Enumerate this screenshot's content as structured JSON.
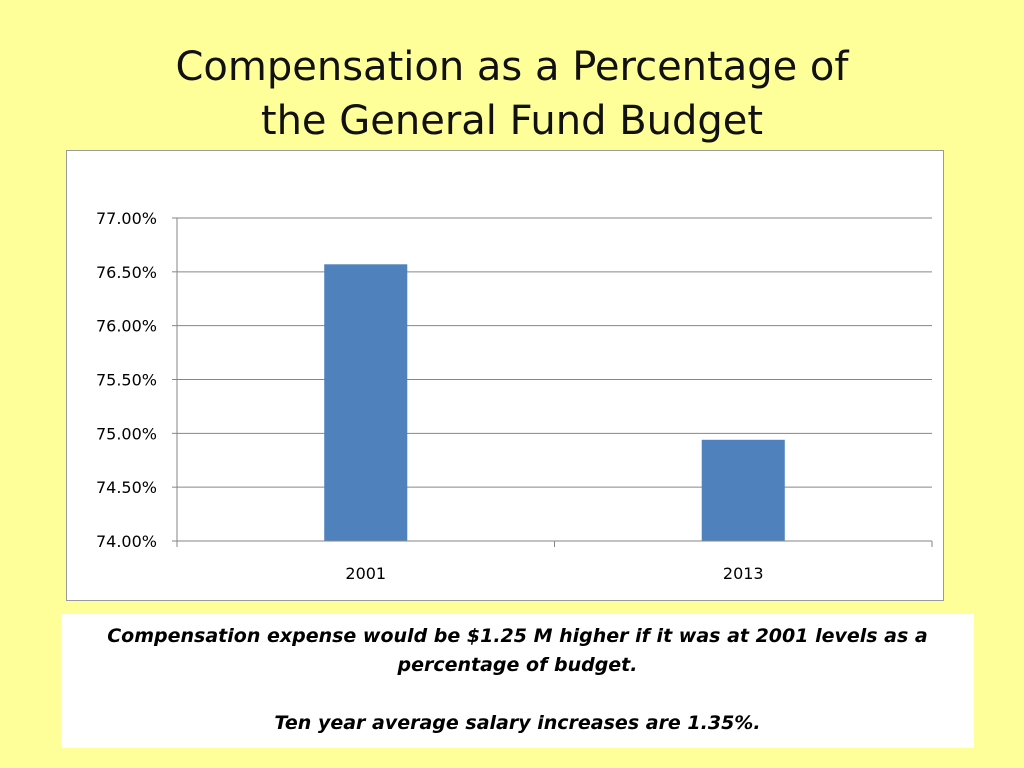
{
  "title": {
    "line1": "Compensation as a Percentage of",
    "line2": "the General Fund Budget"
  },
  "chart_data": {
    "type": "bar",
    "categories": [
      "2001",
      "2013"
    ],
    "values": [
      76.57,
      74.94
    ],
    "ylim": [
      74.0,
      77.0
    ],
    "yticks": [
      "77.00%",
      "76.50%",
      "76.00%",
      "75.50%",
      "75.00%",
      "74.50%",
      "74.00%"
    ],
    "ytick_values": [
      77.0,
      76.5,
      76.0,
      75.5,
      75.0,
      74.5,
      74.0
    ],
    "grid": true,
    "bar_color": "#4f81bd"
  },
  "note": {
    "line1": "Compensation expense would be $1.25 M higher if it was at 2001 levels as a",
    "line2": "percentage of budget.",
    "line3": "Ten year average salary increases are 1.35%."
  }
}
